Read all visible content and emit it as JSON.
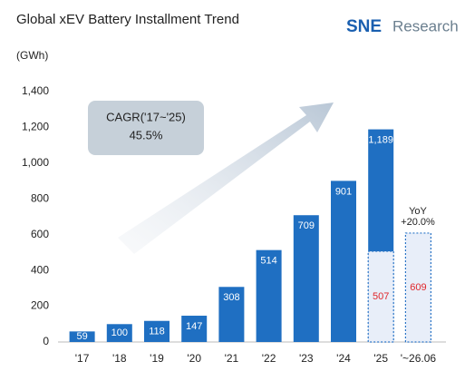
{
  "chart_data": {
    "type": "bar",
    "title": "Global xEV Battery Installment Trend",
    "logo": {
      "mark": "SNE",
      "text": "Research"
    },
    "unit": "(GWh)",
    "categories": [
      "'17",
      "'18",
      "'19",
      "'20",
      "'21",
      "'22",
      "'23",
      "'24",
      "'25",
      "'~26.06"
    ],
    "series": [
      {
        "color": "#1f6fc2",
        "label_color": "#ffffff",
        "values": [
          59,
          100,
          118,
          147,
          308,
          514,
          709,
          901,
          1189,
          null
        ],
        "value_labels": [
          "59",
          "100",
          "118",
          "147",
          "308",
          "514",
          "709",
          "901",
          "1,189",
          null
        ]
      },
      {
        "color": "#e8eef9",
        "border": "#2a74c6",
        "dashed": true,
        "label_color": "#e0262b",
        "values": [
          null,
          null,
          null,
          null,
          null,
          null,
          null,
          null,
          507,
          609
        ]
      }
    ],
    "ylim": [
      0,
      1400
    ],
    "yticks": [
      0,
      200,
      400,
      600,
      800,
      {
        "value": 1000,
        "label": "1,000"
      },
      {
        "value": 1200,
        "label": "1,200"
      },
      {
        "value": 1400,
        "label": "1,400"
      }
    ],
    "annotations": {
      "cagr_label": "CAGR('17~'25)",
      "cagr_value": "45.5%",
      "yoy_label": "YoY",
      "yoy_value": "+20.0%"
    }
  }
}
